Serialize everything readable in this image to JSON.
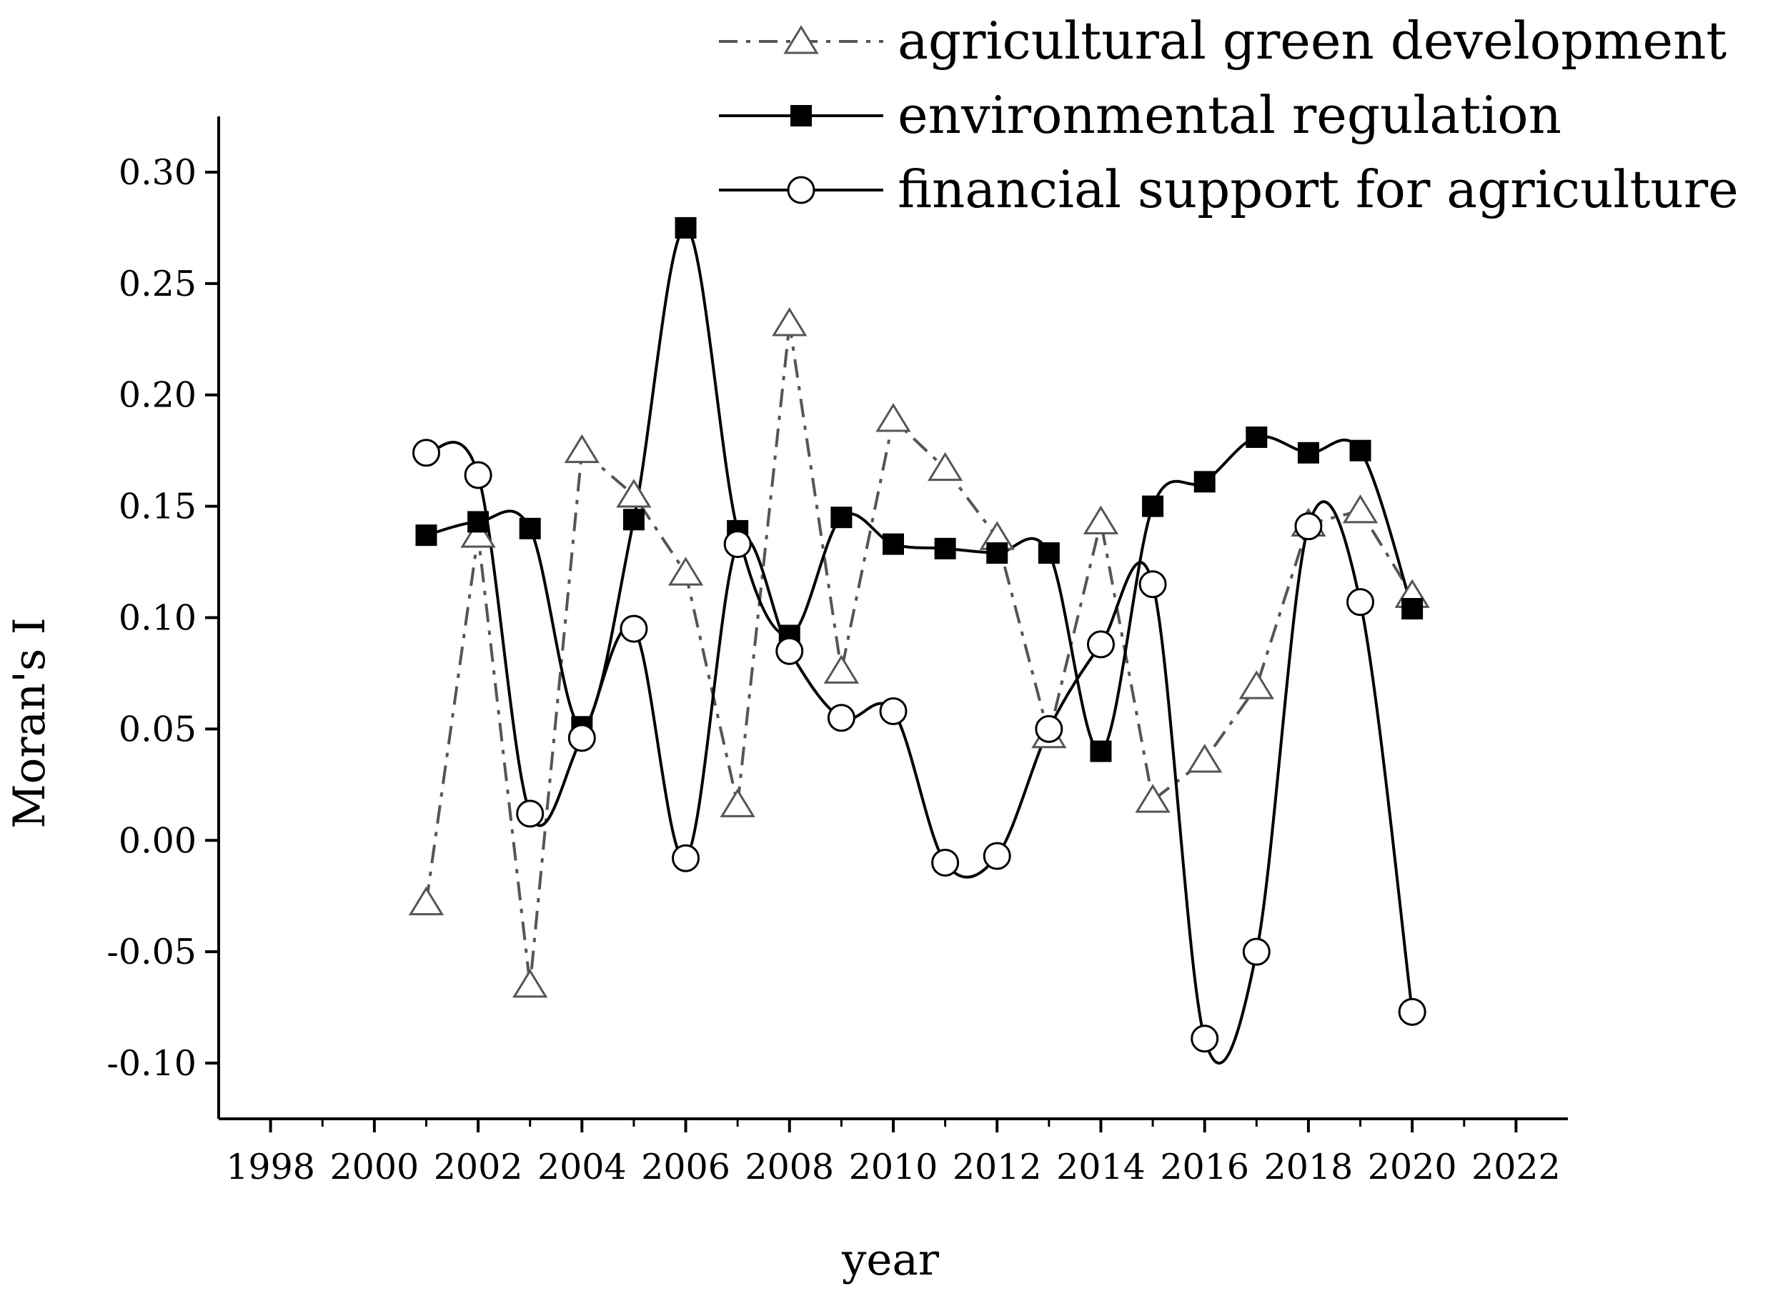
{
  "chart_data": {
    "type": "line",
    "xlabel": "year",
    "ylabel": "Moran's I",
    "xlim": [
      1997,
      2023
    ],
    "ylim": [
      -0.125,
      0.325
    ],
    "x_ticks": [
      1998,
      2000,
      2002,
      2004,
      2006,
      2008,
      2010,
      2012,
      2014,
      2016,
      2018,
      2020,
      2022
    ],
    "x_tick_labels": [
      "1998",
      "2000",
      "2002",
      "2004",
      "2006",
      "2008",
      "2010",
      "2012",
      "2014",
      "2016",
      "2018",
      "2020",
      "2022"
    ],
    "y_ticks": [
      -0.1,
      -0.05,
      0,
      0.05,
      0.1,
      0.15,
      0.2,
      0.25,
      0.3
    ],
    "y_tick_labels": [
      "-0.10",
      "-0.05",
      "0.00",
      "0.05",
      "0.10",
      "0.15",
      "0.20",
      "0.25",
      "0.30"
    ],
    "grid": false,
    "legend_position": "top-right",
    "x": [
      2001,
      2002,
      2003,
      2004,
      2005,
      2006,
      2007,
      2008,
      2009,
      2010,
      2011,
      2012,
      2013,
      2014,
      2015,
      2016,
      2017,
      2018,
      2019,
      2020
    ],
    "series": [
      {
        "name": "agricultural green development",
        "marker": "open-triangle",
        "line_style": "dash-dot",
        "color": "#555555",
        "values": [
          -0.028,
          0.137,
          -0.065,
          0.175,
          0.155,
          0.12,
          0.016,
          0.232,
          0.076,
          0.189,
          0.167,
          0.136,
          0.047,
          0.143,
          0.018,
          0.036,
          0.069,
          0.142,
          0.148,
          0.11
        ]
      },
      {
        "name": "environmental regulation",
        "marker": "filled-square",
        "line_style": "solid",
        "color": "#000000",
        "values": [
          0.137,
          0.143,
          0.14,
          0.051,
          0.144,
          0.275,
          0.139,
          0.092,
          0.145,
          0.133,
          0.131,
          0.129,
          0.129,
          0.04,
          0.15,
          0.161,
          0.181,
          0.174,
          0.175,
          0.104
        ]
      },
      {
        "name": "financial support for agriculture",
        "marker": "open-circle",
        "line_style": "solid",
        "color": "#000000",
        "values": [
          0.174,
          0.164,
          0.012,
          0.046,
          0.095,
          -0.008,
          0.133,
          0.085,
          0.055,
          0.058,
          -0.01,
          -0.007,
          0.05,
          0.088,
          0.115,
          -0.089,
          -0.05,
          0.141,
          0.107,
          -0.077
        ]
      }
    ]
  }
}
